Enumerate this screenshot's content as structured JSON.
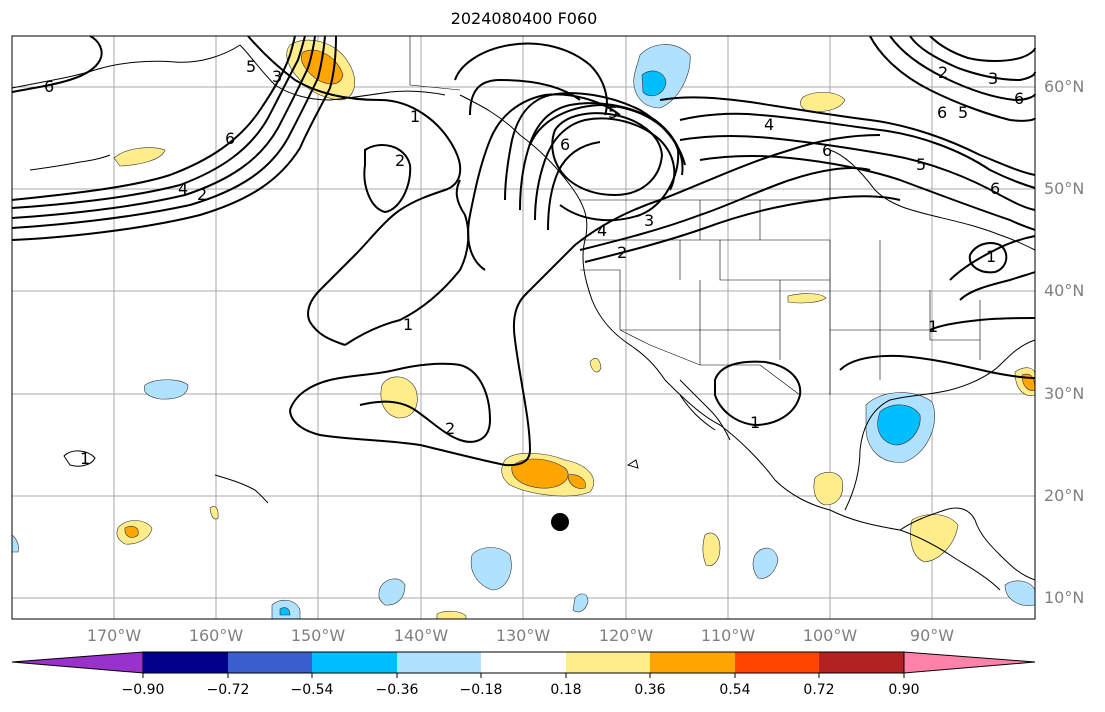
{
  "map": {
    "title": "2024080400 F060",
    "lat_labels": [
      "60°N",
      "50°N",
      "40°N",
      "30°N",
      "20°N",
      "10°N"
    ],
    "lon_labels": [
      "170°W",
      "160°W",
      "150°W",
      "140°W",
      "130°W",
      "120°W",
      "110°W",
      "100°W",
      "90°W"
    ],
    "contour_labels": [
      "6",
      "6",
      "5",
      "4",
      "3",
      "2",
      "1",
      "2",
      "1",
      "2",
      "5",
      "6",
      "4",
      "3",
      "2",
      "1",
      "1",
      "1",
      "6",
      "5",
      "6",
      "4",
      "2",
      "6",
      "3",
      "5",
      "6",
      "1"
    ],
    "marker": "black-dot"
  },
  "colorbar": {
    "colors": [
      "#9932cc",
      "#00008b",
      "#3a5fcd",
      "#00bfff",
      "#b0e2ff",
      "#ffffff",
      "#ffec8b",
      "#ffa500",
      "#ff4500",
      "#b22222",
      "#ff82ab"
    ],
    "labels": [
      "−0.90",
      "−0.72",
      "−0.54",
      "−0.36",
      "−0.18",
      "0.18",
      "0.36",
      "0.54",
      "0.72",
      "0.90"
    ]
  }
}
